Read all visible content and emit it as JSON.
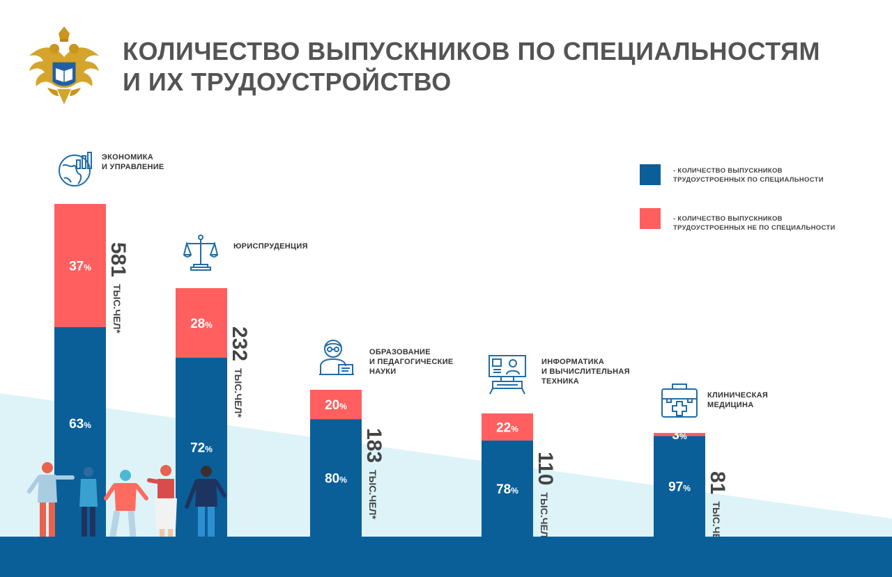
{
  "header": {
    "title_line1": "КОЛИЧЕСТВО ВЫПУСКНИКОВ ПО СПЕЦИАЛЬНОСТЯМ",
    "title_line2": "И ИХ ТРУДОУСТРОЙСТВО",
    "emblem_icon": "double-headed-eagle-emblem"
  },
  "legend": {
    "items": [
      {
        "line1": "- КОЛИЧЕСТВО ВЫПУСКНИКОВ",
        "line2": "ТРУДОУСТРОЕННЫХ ПО СПЕЦИАЛЬНОСТИ",
        "color": "#0A5F99"
      },
      {
        "line1": "- КОЛИЧЕСТВО ВЫПУСКНИКОВ",
        "line2": "ТРУДОУСТРОЕННЫХ НЕ  ПО СПЕЦИАЛЬНОСТИ",
        "color": "#FF5F5F"
      }
    ]
  },
  "colors": {
    "by_specialty": "#0A5F99",
    "not_by_specialty": "#FF5F5F",
    "ground": "#0A5F99",
    "background_wedge": "#DDF3F8",
    "total_text": "#444444"
  },
  "chart_data": {
    "type": "bar",
    "stacked": true,
    "unit": "ТЫС.ЧЕЛ*",
    "percent_sign": "%",
    "categories": [
      {
        "lines": [
          "ЭКОНОМИКА",
          "И УПРАВЛЕНИЕ"
        ],
        "icon": "globe-chart-icon",
        "total": 581,
        "by_specialty": 63,
        "not_by_specialty": 37
      },
      {
        "lines": [
          "ЮРИСПРУДЕНЦИЯ"
        ],
        "icon": "scales-icon",
        "total": 232,
        "by_specialty": 72,
        "not_by_specialty": 28
      },
      {
        "lines": [
          "ОБРАЗОВАНИЕ",
          "И ПЕДАГОГИЧЕСКИЕ",
          "НАУКИ"
        ],
        "icon": "teacher-icon",
        "total": 183,
        "by_specialty": 80,
        "not_by_specialty": 20
      },
      {
        "lines": [
          "ИНФОРМАТИКА",
          "И ВЫЧИСЛИТЕЛЬНАЯ",
          "ТЕХНИКА"
        ],
        "icon": "computer-user-icon",
        "total": 110,
        "by_specialty": 78,
        "not_by_specialty": 22
      },
      {
        "lines": [
          "КЛИНИЧЕСКАЯ",
          "МЕДИЦИНА"
        ],
        "icon": "first-aid-kit-icon",
        "total": 81,
        "by_specialty": 97,
        "not_by_specialty": 3
      }
    ],
    "illustration": "people-group-illustration"
  }
}
